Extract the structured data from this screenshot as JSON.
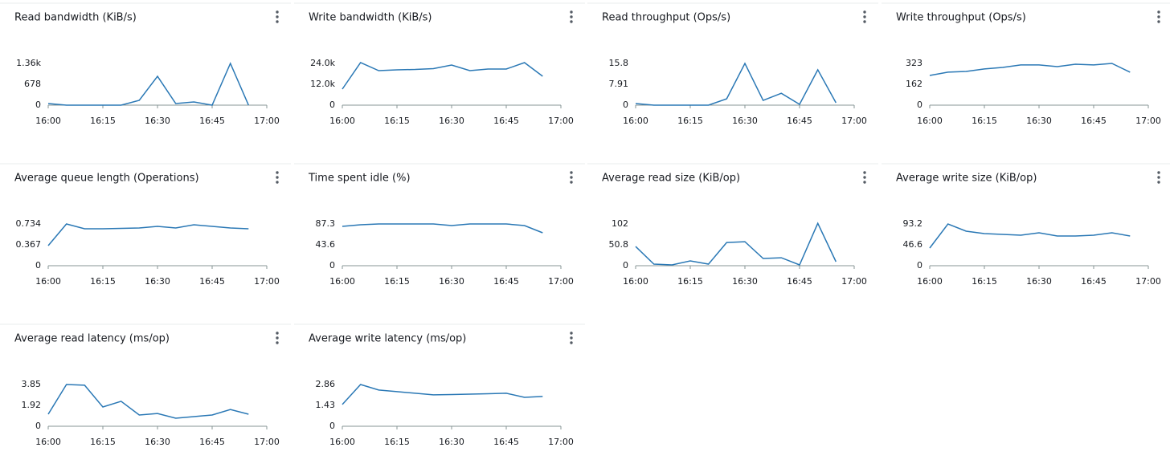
{
  "chart_data": [
    {
      "type": "line",
      "title": "Read bandwidth (KiB/s)",
      "color": "#2a78b5",
      "x": [
        "16:00",
        "16:05",
        "16:10",
        "16:15",
        "16:20",
        "16:25",
        "16:30",
        "16:35",
        "16:40",
        "16:45",
        "16:50",
        "16:55"
      ],
      "values": [
        52,
        0,
        0,
        0,
        0,
        156,
        939,
        52,
        104,
        0,
        1360,
        0
      ],
      "xlim": [
        "16:00",
        "17:00"
      ],
      "xticks": [
        "16:00",
        "16:15",
        "16:30",
        "16:45",
        "17:00"
      ],
      "ylim": [
        0,
        1360
      ],
      "yticks": [
        0,
        678,
        {
          "value": 1360,
          "label": "1.36k"
        }
      ]
    },
    {
      "type": "line",
      "title": "Write bandwidth (KiB/s)",
      "color": "#2a78b5",
      "x": [
        "16:00",
        "16:05",
        "16:10",
        "16:15",
        "16:20",
        "16:25",
        "16:30",
        "16:35",
        "16:40",
        "16:45",
        "16:50",
        "16:55"
      ],
      "values": [
        9231,
        24462,
        19846,
        20308,
        20538,
        21000,
        23077,
        19846,
        20769,
        20769,
        24462,
        16615
      ],
      "xlim": [
        "16:00",
        "17:00"
      ],
      "xticks": [
        "16:00",
        "16:15",
        "16:30",
        "16:45",
        "17:00"
      ],
      "ylim": [
        0,
        24000
      ],
      "yticks": [
        0,
        {
          "value": 12000,
          "label": "12.0k"
        },
        {
          "value": 24000,
          "label": "24.0k"
        }
      ]
    },
    {
      "type": "line",
      "title": "Read throughput (Ops/s)",
      "color": "#2a78b5",
      "x": [
        "16:00",
        "16:05",
        "16:10",
        "16:15",
        "16:20",
        "16:25",
        "16:30",
        "16:35",
        "16:40",
        "16:45",
        "16:50",
        "16:55"
      ],
      "values": [
        0.6,
        0,
        0,
        0,
        0,
        2.4,
        15.8,
        1.8,
        4.5,
        0.3,
        13.4,
        0.9
      ],
      "xlim": [
        "16:00",
        "17:00"
      ],
      "xticks": [
        "16:00",
        "16:15",
        "16:30",
        "16:45",
        "17:00"
      ],
      "ylim": [
        0,
        15.8
      ],
      "yticks": [
        0,
        7.91,
        15.8
      ]
    },
    {
      "type": "line",
      "title": "Write throughput (Ops/s)",
      "color": "#2a78b5",
      "x": [
        "16:00",
        "16:05",
        "16:10",
        "16:15",
        "16:20",
        "16:25",
        "16:30",
        "16:35",
        "16:40",
        "16:45",
        "16:50",
        "16:55"
      ],
      "values": [
        230,
        255,
        261,
        280,
        292,
        311,
        311,
        298,
        317,
        311,
        323,
        255
      ],
      "xlim": [
        "16:00",
        "17:00"
      ],
      "xticks": [
        "16:00",
        "16:15",
        "16:30",
        "16:45",
        "17:00"
      ],
      "ylim": [
        0,
        323
      ],
      "yticks": [
        0,
        162,
        323
      ]
    },
    {
      "type": "line",
      "title": "Average queue length (Operations)",
      "color": "#2a78b5",
      "x": [
        "16:00",
        "16:05",
        "16:10",
        "16:15",
        "16:20",
        "16:25",
        "16:30",
        "16:35",
        "16:40",
        "16:45",
        "16:50",
        "16:55"
      ],
      "values": [
        0.353,
        0.734,
        0.649,
        0.649,
        0.656,
        0.663,
        0.692,
        0.663,
        0.72,
        0.692,
        0.663,
        0.649
      ],
      "xlim": [
        "16:00",
        "17:00"
      ],
      "xticks": [
        "16:00",
        "16:15",
        "16:30",
        "16:45",
        "17:00"
      ],
      "ylim": [
        0,
        0.734
      ],
      "yticks": [
        0,
        0.367,
        0.734
      ]
    },
    {
      "type": "line",
      "title": "Time spent idle (%)",
      "color": "#2a78b5",
      "x": [
        "16:00",
        "16:05",
        "16:10",
        "16:15",
        "16:20",
        "16:25",
        "16:30",
        "16:35",
        "16:40",
        "16:45",
        "16:50",
        "16:55"
      ],
      "values": [
        82.3,
        85.6,
        87.3,
        87.3,
        87.3,
        87.3,
        84,
        87.3,
        87.3,
        87.3,
        84,
        68.8
      ],
      "xlim": [
        "16:00",
        "17:00"
      ],
      "xticks": [
        "16:00",
        "16:15",
        "16:30",
        "16:45",
        "17:00"
      ],
      "ylim": [
        0,
        87.3
      ],
      "yticks": [
        0,
        43.6,
        87.3
      ]
    },
    {
      "type": "line",
      "title": "Average read size (KiB/op)",
      "color": "#2a78b5",
      "x": [
        "16:00",
        "16:05",
        "16:10",
        "16:15",
        "16:20",
        "16:25",
        "16:30",
        "16:35",
        "16:40",
        "16:45",
        "16:50",
        "16:55"
      ],
      "values": [
        46.9,
        3.9,
        2,
        11.7,
        3.9,
        56.7,
        58.6,
        17.6,
        19.5,
        2,
        103.5,
        9.8
      ],
      "xlim": [
        "16:00",
        "17:00"
      ],
      "xticks": [
        "16:00",
        "16:15",
        "16:30",
        "16:45",
        "17:00"
      ],
      "ylim": [
        0,
        102
      ],
      "yticks": [
        0,
        50.8,
        102
      ]
    },
    {
      "type": "line",
      "title": "Average write size (KiB/op)",
      "color": "#2a78b5",
      "x": [
        "16:00",
        "16:05",
        "16:10",
        "16:15",
        "16:20",
        "16:25",
        "16:30",
        "16:35",
        "16:40",
        "16:45",
        "16:50",
        "16:55"
      ],
      "values": [
        39.4,
        93.2,
        77.1,
        71.7,
        69.9,
        68.1,
        73.5,
        66.3,
        66.3,
        68.1,
        73.5,
        66.3
      ],
      "xlim": [
        "16:00",
        "17:00"
      ],
      "xticks": [
        "16:00",
        "16:15",
        "16:30",
        "16:45",
        "17:00"
      ],
      "ylim": [
        0,
        93.2
      ],
      "yticks": [
        0,
        46.6,
        93.2
      ]
    },
    {
      "type": "line",
      "title": "Average read latency (ms/op)",
      "color": "#2a78b5",
      "x": [
        "16:00",
        "16:05",
        "16:10",
        "16:15",
        "16:20",
        "16:25",
        "16:30",
        "16:35",
        "16:40",
        "16:45",
        "16:50",
        "16:55"
      ],
      "values": [
        1.11,
        3.85,
        3.78,
        1.78,
        2.3,
        1.04,
        1.18,
        0.74,
        0.89,
        1.04,
        1.55,
        1.11
      ],
      "xlim": [
        "16:00",
        "17:00"
      ],
      "xticks": [
        "16:00",
        "16:15",
        "16:30",
        "16:45",
        "17:00"
      ],
      "ylim": [
        0,
        3.85
      ],
      "yticks": [
        0,
        1.92,
        3.85
      ]
    },
    {
      "type": "line",
      "title": "Average write latency (ms/op)",
      "color": "#2a78b5",
      "x": [
        "16:00",
        "16:05",
        "16:10",
        "16:15",
        "16:20",
        "16:25",
        "16:30",
        "16:35",
        "16:40",
        "16:45",
        "16:50",
        "16:55"
      ],
      "values": [
        1.49,
        2.86,
        2.48,
        2.37,
        2.26,
        2.15,
        2.17,
        2.2,
        2.23,
        2.26,
        1.98,
        2.04
      ],
      "xlim": [
        "16:00",
        "17:00"
      ],
      "xticks": [
        "16:00",
        "16:15",
        "16:30",
        "16:45",
        "17:00"
      ],
      "ylim": [
        0,
        2.86
      ],
      "yticks": [
        0,
        1.43,
        2.86
      ]
    }
  ]
}
